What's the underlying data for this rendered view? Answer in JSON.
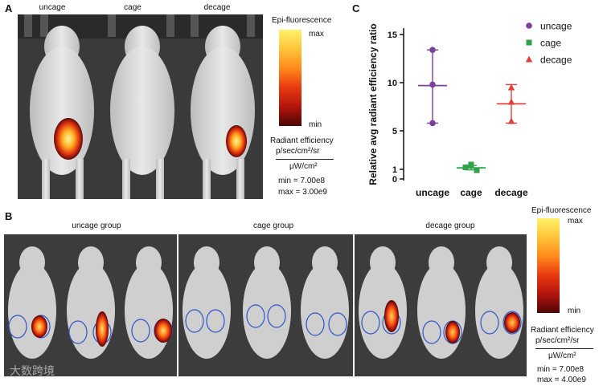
{
  "panel_a": {
    "letter": "A",
    "mouse_labels": [
      "uncage",
      "cage",
      "decage"
    ],
    "colorbar": {
      "title": "Epi-fluorescence",
      "max": "max",
      "min": "min",
      "units_title": "Radiant efficiency",
      "units_line1": "p/sec/cm²/sr",
      "units_line2": "μW/cm²",
      "range_min": "min = 7.00e8",
      "range_max": "max = 3.00e9"
    }
  },
  "panel_b": {
    "letter": "B",
    "group_labels": [
      "uncage group",
      "cage group",
      "decage group"
    ],
    "colorbar": {
      "title": "Epi-fluorescence",
      "max": "max",
      "min": "min",
      "units_title": "Radiant efficiency",
      "units_line1": "p/sec/cm²/sr",
      "units_line2": "μW/cm²",
      "range_min": "min = 7.00e8",
      "range_max": "max = 4.00e9"
    },
    "watermark": "大数跨境"
  },
  "panel_c": {
    "letter": "C",
    "chart_data": {
      "type": "scatter",
      "ylabel": "Relative avg radiant efficiency ratio",
      "categories": [
        "uncage",
        "cage",
        "decage"
      ],
      "yticks": [
        0,
        1,
        5,
        10,
        15
      ],
      "ylim": [
        0,
        15.5
      ],
      "series": [
        {
          "name": "uncage",
          "marker": "circle",
          "color": "#7b3f9e",
          "points": [
            13.4,
            9.8,
            5.8
          ],
          "mean": 9.7,
          "err": [
            5.8,
            13.4
          ]
        },
        {
          "name": "cage",
          "marker": "square",
          "color": "#2fa24a",
          "points": [
            1.5,
            1.2,
            0.9
          ],
          "mean": 1.15,
          "err": [
            0.95,
            1.4
          ]
        },
        {
          "name": "decage",
          "marker": "triangle",
          "color": "#e0413a",
          "points": [
            9.5,
            8.0,
            6.0
          ],
          "mean": 7.8,
          "err": [
            5.8,
            9.8
          ]
        }
      ],
      "legend": [
        "uncage",
        "cage",
        "decage"
      ]
    }
  }
}
